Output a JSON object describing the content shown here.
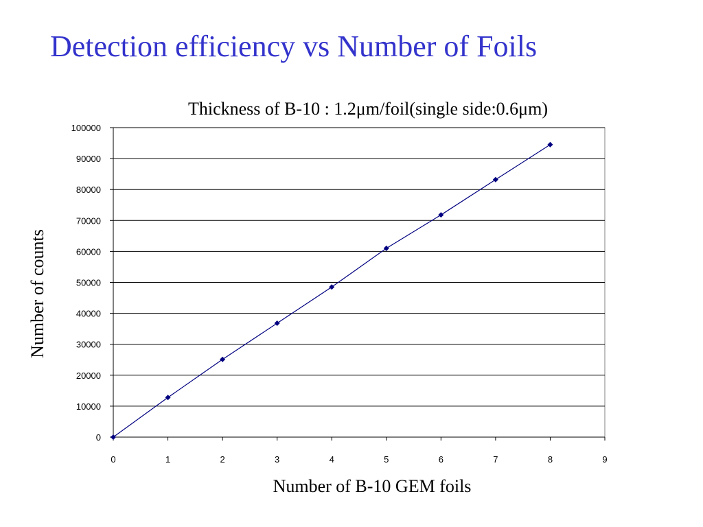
{
  "title": "Detection efficiency vs Number of  Foils",
  "chart_data": {
    "type": "line",
    "title": "Detection efficiency vs Number of  Foils",
    "subtitle": "Thickness of B-10 : 1.2μm/foil(single side:0.6μm)",
    "xlabel": "Number of B-10 GEM foils",
    "ylabel": "Number of counts",
    "xlim": [
      0,
      9
    ],
    "ylim": [
      0,
      100000
    ],
    "xticks": [
      "0",
      "1",
      "2",
      "3",
      "4",
      "5",
      "6",
      "7",
      "8",
      "9"
    ],
    "yticks": [
      "0",
      "10000",
      "20000",
      "30000",
      "40000",
      "50000",
      "60000",
      "70000",
      "80000",
      "90000",
      "100000"
    ],
    "grid": "horizontal",
    "legend": "none",
    "series": [
      {
        "x": [
          0,
          1,
          2,
          3,
          4,
          5,
          6,
          7,
          8
        ],
        "y": [
          0,
          12800,
          25100,
          36800,
          48500,
          61000,
          71800,
          83200,
          94500
        ]
      }
    ],
    "colors": {
      "line": "#000080",
      "marker": "#000080",
      "title": "#3333cc"
    }
  }
}
